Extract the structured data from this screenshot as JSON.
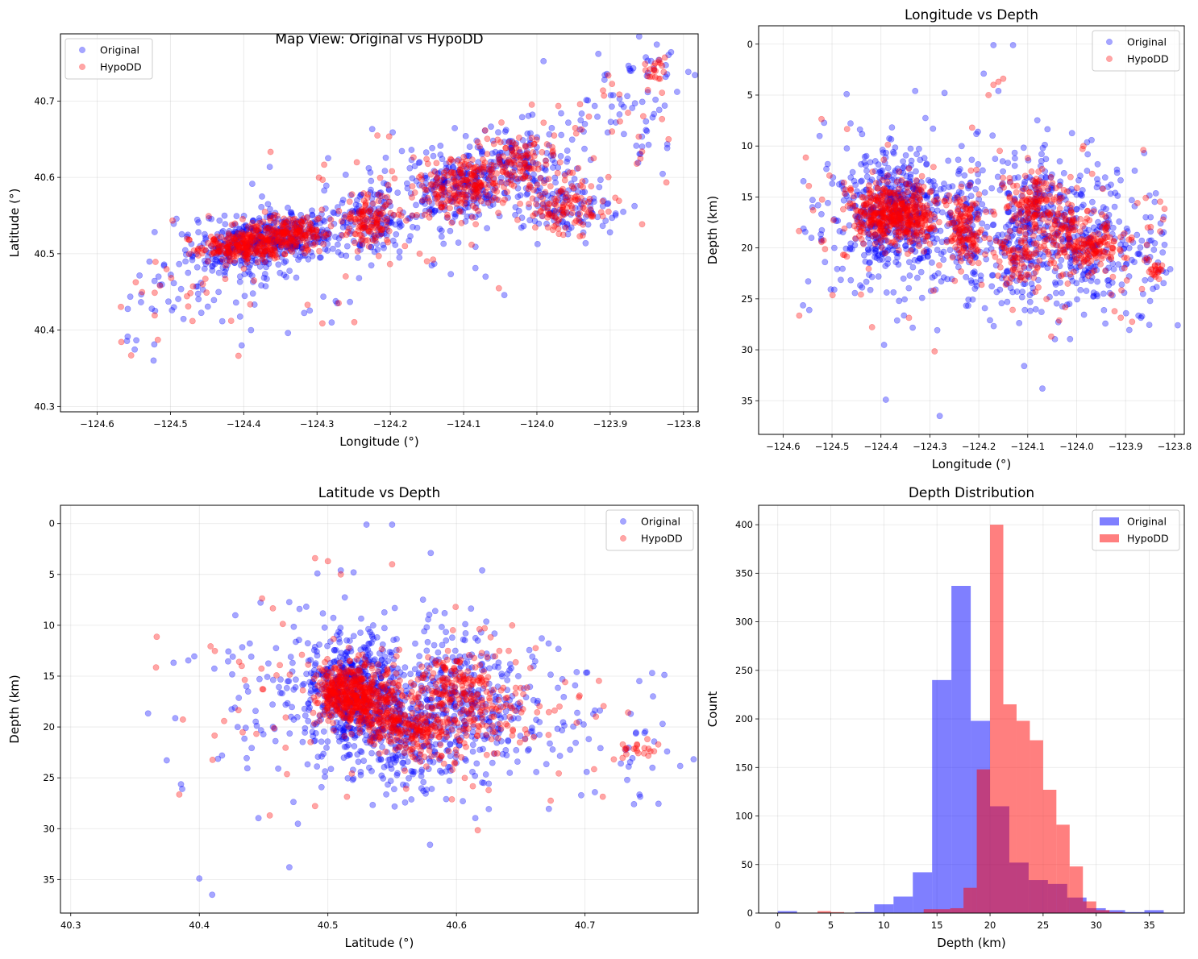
{
  "colors": {
    "original": "#0000ff",
    "hypodd": "#ff0000"
  },
  "chart_data": [
    {
      "id": "map",
      "type": "scatter",
      "title": "Map View: Original vs HypoDD",
      "xlabel": "Longitude (°)",
      "ylabel": "Latitude (°)",
      "xlim": [
        -124.65,
        -123.78
      ],
      "ylim": [
        40.293,
        40.788
      ],
      "xticks": [
        -124.6,
        -124.5,
        -124.4,
        -124.3,
        -124.2,
        -124.1,
        -124.0,
        -123.9,
        -123.8
      ],
      "xtick_labels": [
        "−124.6",
        "−124.5",
        "−124.4",
        "−124.3",
        "−124.2",
        "−124.1",
        "−124.0",
        "−123.9",
        "−123.8"
      ],
      "yticks": [
        40.3,
        40.4,
        40.5,
        40.6,
        40.7
      ],
      "ytick_labels": [
        "40.3",
        "40.4",
        "40.5",
        "40.6",
        "40.7"
      ],
      "y_inverted": false,
      "grid": true,
      "legend": [
        "Original",
        "HypoDD"
      ],
      "legend_position": "upper-left",
      "x_field": "lon",
      "y_field": "lat"
    },
    {
      "id": "londepth",
      "type": "scatter",
      "title": "Longitude vs Depth",
      "xlabel": "Longitude (°)",
      "ylabel": "Depth (km)",
      "xlim": [
        -124.65,
        -123.78
      ],
      "ylim": [
        -1.8,
        38.3
      ],
      "xticks": [
        -124.6,
        -124.5,
        -124.4,
        -124.3,
        -124.2,
        -124.1,
        -124.0,
        -123.9,
        -123.8
      ],
      "xtick_labels": [
        "−124.6",
        "−124.5",
        "−124.4",
        "−124.3",
        "−124.2",
        "−124.1",
        "−124.0",
        "−123.9",
        "−123.8"
      ],
      "yticks": [
        0,
        5,
        10,
        15,
        20,
        25,
        30,
        35
      ],
      "ytick_labels": [
        "0",
        "5",
        "10",
        "15",
        "20",
        "25",
        "30",
        "35"
      ],
      "y_inverted": true,
      "grid": true,
      "legend": [
        "Original",
        "HypoDD"
      ],
      "legend_position": "upper-right",
      "x_field": "lon",
      "y_field": "depth"
    },
    {
      "id": "latdepth",
      "type": "scatter",
      "title": "Latitude vs Depth",
      "xlabel": "Latitude (°)",
      "ylabel": "Depth (km)",
      "xlim": [
        40.292,
        40.788
      ],
      "ylim": [
        -1.8,
        38.3
      ],
      "xticks": [
        40.3,
        40.4,
        40.5,
        40.6,
        40.7
      ],
      "xtick_labels": [
        "40.3",
        "40.4",
        "40.5",
        "40.6",
        "40.7"
      ],
      "yticks": [
        0,
        5,
        10,
        15,
        20,
        25,
        30,
        35
      ],
      "ytick_labels": [
        "0",
        "5",
        "10",
        "15",
        "20",
        "25",
        "30",
        "35"
      ],
      "y_inverted": true,
      "grid": true,
      "legend": [
        "Original",
        "HypoDD"
      ],
      "legend_position": "upper-right",
      "x_field": "lat",
      "y_field": "depth"
    },
    {
      "id": "hist",
      "type": "bar",
      "title": "Depth Distribution",
      "xlabel": "Depth (km)",
      "ylabel": "Count",
      "xlim": [
        -1.8,
        38.3
      ],
      "ylim": [
        0,
        420
      ],
      "xticks": [
        0,
        5,
        10,
        15,
        20,
        25,
        30,
        35
      ],
      "xtick_labels": [
        "0",
        "5",
        "10",
        "15",
        "20",
        "25",
        "30",
        "35"
      ],
      "yticks": [
        0,
        50,
        100,
        150,
        200,
        250,
        300,
        350,
        400
      ],
      "ytick_labels": [
        "0",
        "50",
        "100",
        "150",
        "200",
        "250",
        "300",
        "350",
        "400"
      ],
      "grid": true,
      "legend": [
        "Original",
        "HypoDD"
      ],
      "legend_position": "upper-right",
      "series": [
        {
          "name": "Original",
          "bin_start": 0,
          "bin_width": 1.818,
          "values": [
            2,
            0,
            0,
            0,
            1,
            9,
            17,
            42,
            240,
            337,
            198,
            110,
            52,
            34,
            30,
            16,
            5,
            3,
            1,
            3
          ]
        },
        {
          "name": "HypoDD",
          "bin_start": 2.5,
          "bin_width": 1.25,
          "values": [
            0,
            2,
            1,
            0,
            0,
            0,
            0,
            0,
            0,
            4,
            4,
            5,
            26,
            148,
            400,
            215,
            198,
            178,
            127,
            91,
            48,
            12,
            3,
            1,
            0
          ]
        }
      ]
    }
  ]
}
